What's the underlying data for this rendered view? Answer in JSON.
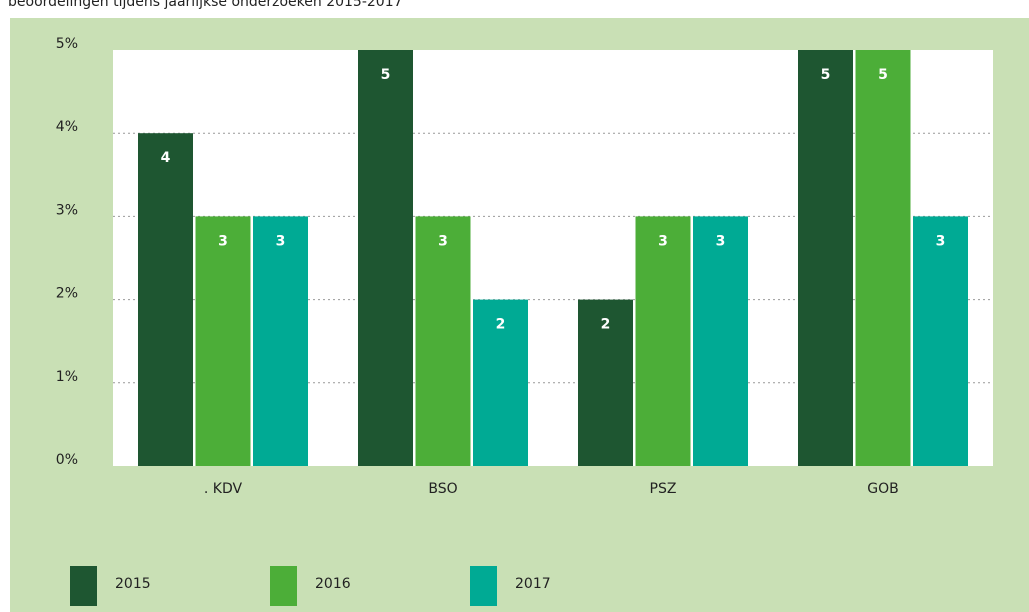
{
  "chart_data": {
    "type": "bar",
    "title": "beoordelingen tijdens jaarlijkse onderzoeken 2015-2017",
    "categories": [
      ". KDV",
      "BSO",
      "PSZ",
      "GOB"
    ],
    "series": [
      {
        "name": "2015",
        "color": "#1e5631",
        "values": [
          4,
          5,
          2,
          5
        ]
      },
      {
        "name": "2016",
        "color": "#4cae38",
        "values": [
          3,
          3,
          3,
          5
        ]
      },
      {
        "name": "2017",
        "color": "#00aa94",
        "values": [
          3,
          2,
          3,
          3
        ]
      }
    ],
    "ylim": [
      0,
      5
    ],
    "yticks": [
      {
        "value": 0,
        "label": "0%"
      },
      {
        "value": 1,
        "label": "1%"
      },
      {
        "value": 2,
        "label": "2%"
      },
      {
        "value": 3,
        "label": "3%"
      },
      {
        "value": 4,
        "label": "4%"
      },
      {
        "value": 5,
        "label": "5%"
      }
    ],
    "grid": true,
    "legend": "bottom"
  }
}
